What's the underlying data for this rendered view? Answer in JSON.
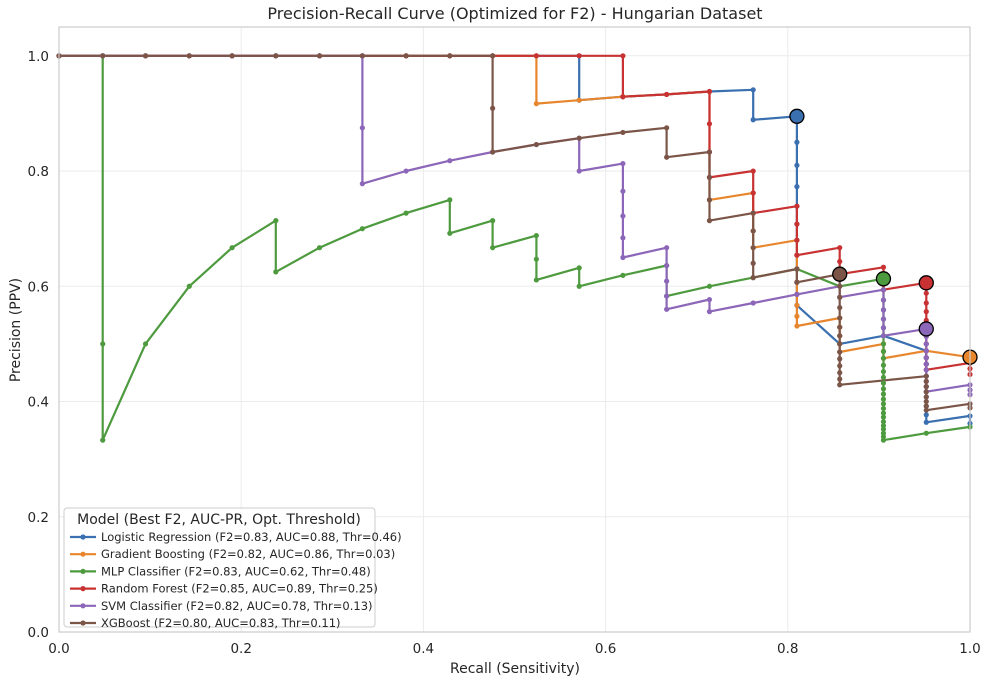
{
  "chart_data": {
    "type": "line",
    "title": "Precision-Recall Curve (Optimized for F2) - Hungarian Dataset",
    "xlabel": "Recall (Sensitivity)",
    "ylabel": "Precision (PPV)",
    "xlim": [
      0,
      1
    ],
    "ylim": [
      0,
      1.05
    ],
    "grid": true,
    "x_ticks": [
      "0.0",
      "0.2",
      "0.4",
      "0.6",
      "0.8",
      "1.0"
    ],
    "x_tick_values": [
      0,
      0.2,
      0.4,
      0.6,
      0.8,
      1.0
    ],
    "y_ticks": [
      "0.0",
      "0.2",
      "0.4",
      "0.6",
      "0.8",
      "1.0"
    ],
    "y_tick_values": [
      0,
      0.2,
      0.4,
      0.6,
      0.8,
      1.0
    ],
    "legend": {
      "title": "Model (Best F2, AUC-PR, Opt. Threshold)",
      "placement": "lower-left"
    },
    "series": [
      {
        "name": "Logistic Regression (F2=0.83, AUC=0.88, Thr=0.46)",
        "color": "#3a6fb0",
        "points": [
          [
            0,
            1
          ],
          [
            0.048,
            1
          ],
          [
            0.095,
            1
          ],
          [
            0.143,
            1
          ],
          [
            0.19,
            1
          ],
          [
            0.238,
            1
          ],
          [
            0.286,
            1
          ],
          [
            0.333,
            1
          ],
          [
            0.381,
            1
          ],
          [
            0.429,
            1
          ],
          [
            0.476,
            1
          ],
          [
            0.524,
            1
          ],
          [
            0.571,
            1
          ],
          [
            0.571,
            0.923
          ],
          [
            0.619,
            0.929
          ],
          [
            0.667,
            0.933
          ],
          [
            0.714,
            0.938
          ],
          [
            0.762,
            0.941
          ],
          [
            0.762,
            0.889
          ],
          [
            0.81,
            0.895
          ],
          [
            0.81,
            0.85
          ],
          [
            0.81,
            0.81
          ],
          [
            0.81,
            0.773
          ],
          [
            0.81,
            0.739
          ],
          [
            0.81,
            0.708
          ],
          [
            0.81,
            0.68
          ],
          [
            0.81,
            0.654
          ],
          [
            0.81,
            0.63
          ],
          [
            0.81,
            0.607
          ],
          [
            0.81,
            0.586
          ],
          [
            0.81,
            0.567
          ],
          [
            0.857,
            0.5
          ],
          [
            0.905,
            0.514
          ],
          [
            0.952,
            0.488
          ],
          [
            0.952,
            0.476
          ],
          [
            0.952,
            0.465
          ],
          [
            0.952,
            0.444
          ],
          [
            0.952,
            0.426
          ],
          [
            0.952,
            0.408
          ],
          [
            0.952,
            0.392
          ],
          [
            0.952,
            0.377
          ],
          [
            0.952,
            0.364
          ],
          [
            1.0,
            0.375
          ],
          [
            1.0,
            0.362
          ]
        ],
        "best": [
          0.81,
          0.895
        ]
      },
      {
        "name": "Gradient Boosting (F2=0.82, AUC=0.86, Thr=0.03)",
        "color": "#e8862e",
        "points": [
          [
            0,
            1
          ],
          [
            0.048,
            1
          ],
          [
            0.095,
            1
          ],
          [
            0.143,
            1
          ],
          [
            0.19,
            1
          ],
          [
            0.238,
            1
          ],
          [
            0.286,
            1
          ],
          [
            0.333,
            1
          ],
          [
            0.381,
            1
          ],
          [
            0.429,
            1
          ],
          [
            0.476,
            1
          ],
          [
            0.524,
            1
          ],
          [
            0.524,
            0.917
          ],
          [
            0.571,
            0.923
          ],
          [
            0.619,
            0.929
          ],
          [
            0.619,
            0.929
          ],
          [
            0.667,
            0.933
          ],
          [
            0.714,
            0.938
          ],
          [
            0.714,
            0.75
          ],
          [
            0.762,
            0.762
          ],
          [
            0.762,
            0.727
          ],
          [
            0.762,
            0.696
          ],
          [
            0.762,
            0.667
          ],
          [
            0.81,
            0.68
          ],
          [
            0.81,
            0.654
          ],
          [
            0.81,
            0.63
          ],
          [
            0.81,
            0.607
          ],
          [
            0.81,
            0.586
          ],
          [
            0.81,
            0.567
          ],
          [
            0.81,
            0.548
          ],
          [
            0.81,
            0.531
          ],
          [
            0.857,
            0.545
          ],
          [
            0.857,
            0.529
          ],
          [
            0.857,
            0.514
          ],
          [
            0.857,
            0.5
          ],
          [
            0.857,
            0.486
          ],
          [
            0.905,
            0.5
          ],
          [
            0.905,
            0.487
          ],
          [
            0.905,
            0.475
          ],
          [
            0.952,
            0.488
          ],
          [
            1.0,
            0.477
          ]
        ],
        "best": [
          1.0,
          0.477
        ]
      },
      {
        "name": "MLP Classifier (F2=0.83, AUC=0.62, Thr=0.48)",
        "color": "#4e9a3f",
        "points": [
          [
            0,
            1
          ],
          [
            0.048,
            1
          ],
          [
            0.048,
            0.5
          ],
          [
            0.048,
            0.333
          ],
          [
            0.095,
            0.5
          ],
          [
            0.143,
            0.6
          ],
          [
            0.19,
            0.667
          ],
          [
            0.238,
            0.714
          ],
          [
            0.238,
            0.625
          ],
          [
            0.286,
            0.667
          ],
          [
            0.333,
            0.7
          ],
          [
            0.381,
            0.727
          ],
          [
            0.429,
            0.75
          ],
          [
            0.429,
            0.692
          ],
          [
            0.476,
            0.714
          ],
          [
            0.476,
            0.667
          ],
          [
            0.524,
            0.688
          ],
          [
            0.524,
            0.647
          ],
          [
            0.524,
            0.611
          ],
          [
            0.571,
            0.632
          ],
          [
            0.571,
            0.6
          ],
          [
            0.619,
            0.619
          ],
          [
            0.667,
            0.636
          ],
          [
            0.667,
            0.583
          ],
          [
            0.714,
            0.6
          ],
          [
            0.762,
            0.615
          ],
          [
            0.81,
            0.63
          ],
          [
            0.857,
            0.6
          ],
          [
            0.905,
            0.613
          ],
          [
            0.905,
            0.594
          ],
          [
            0.905,
            0.576
          ],
          [
            0.905,
            0.559
          ],
          [
            0.905,
            0.543
          ],
          [
            0.905,
            0.528
          ],
          [
            0.905,
            0.514
          ],
          [
            0.905,
            0.5
          ],
          [
            0.905,
            0.487
          ],
          [
            0.905,
            0.475
          ],
          [
            0.905,
            0.463
          ],
          [
            0.905,
            0.452
          ],
          [
            0.905,
            0.442
          ],
          [
            0.905,
            0.432
          ],
          [
            0.905,
            0.422
          ],
          [
            0.905,
            0.413
          ],
          [
            0.905,
            0.404
          ],
          [
            0.905,
            0.396
          ],
          [
            0.905,
            0.388
          ],
          [
            0.905,
            0.38
          ],
          [
            0.905,
            0.373
          ],
          [
            0.905,
            0.365
          ],
          [
            0.905,
            0.358
          ],
          [
            0.905,
            0.352
          ],
          [
            0.905,
            0.345
          ],
          [
            0.905,
            0.339
          ],
          [
            0.905,
            0.333
          ],
          [
            0.952,
            0.345
          ],
          [
            1.0,
            0.356
          ]
        ],
        "best": [
          0.905,
          0.613
        ]
      },
      {
        "name": "Random Forest (F2=0.85, AUC=0.89, Thr=0.25)",
        "color": "#c83232",
        "points": [
          [
            0,
            1
          ],
          [
            0.048,
            1
          ],
          [
            0.095,
            1
          ],
          [
            0.143,
            1
          ],
          [
            0.19,
            1
          ],
          [
            0.238,
            1
          ],
          [
            0.286,
            1
          ],
          [
            0.333,
            1
          ],
          [
            0.381,
            1
          ],
          [
            0.429,
            1
          ],
          [
            0.476,
            1
          ],
          [
            0.524,
            1
          ],
          [
            0.571,
            1
          ],
          [
            0.619,
            1
          ],
          [
            0.619,
            0.929
          ],
          [
            0.667,
            0.933
          ],
          [
            0.714,
            0.938
          ],
          [
            0.714,
            0.882
          ],
          [
            0.714,
            0.833
          ],
          [
            0.714,
            0.789
          ],
          [
            0.762,
            0.8
          ],
          [
            0.762,
            0.762
          ],
          [
            0.762,
            0.727
          ],
          [
            0.81,
            0.739
          ],
          [
            0.81,
            0.708
          ],
          [
            0.81,
            0.68
          ],
          [
            0.81,
            0.654
          ],
          [
            0.857,
            0.667
          ],
          [
            0.857,
            0.643
          ],
          [
            0.857,
            0.621
          ],
          [
            0.905,
            0.633
          ],
          [
            0.905,
            0.613
          ],
          [
            0.905,
            0.594
          ],
          [
            0.952,
            0.606
          ],
          [
            0.952,
            0.588
          ],
          [
            0.952,
            0.571
          ],
          [
            0.952,
            0.556
          ],
          [
            0.952,
            0.541
          ],
          [
            0.952,
            0.526
          ],
          [
            0.952,
            0.513
          ],
          [
            0.952,
            0.5
          ],
          [
            0.952,
            0.488
          ],
          [
            0.952,
            0.476
          ],
          [
            0.952,
            0.465
          ],
          [
            0.952,
            0.455
          ],
          [
            1.0,
            0.467
          ],
          [
            1.0,
            0.457
          ],
          [
            1.0,
            0.447
          ]
        ],
        "best": [
          0.952,
          0.606
        ]
      },
      {
        "name": "SVM Classifier (F2=0.82, AUC=0.78, Thr=0.13)",
        "color": "#8c66b8",
        "points": [
          [
            0,
            1
          ],
          [
            0.048,
            1
          ],
          [
            0.095,
            1
          ],
          [
            0.143,
            1
          ],
          [
            0.19,
            1
          ],
          [
            0.238,
            1
          ],
          [
            0.286,
            1
          ],
          [
            0.333,
            1
          ],
          [
            0.333,
            0.875
          ],
          [
            0.333,
            0.778
          ],
          [
            0.381,
            0.8
          ],
          [
            0.429,
            0.818
          ],
          [
            0.476,
            0.833
          ],
          [
            0.524,
            0.846
          ],
          [
            0.571,
            0.857
          ],
          [
            0.571,
            0.8
          ],
          [
            0.619,
            0.813
          ],
          [
            0.619,
            0.765
          ],
          [
            0.619,
            0.722
          ],
          [
            0.619,
            0.684
          ],
          [
            0.619,
            0.65
          ],
          [
            0.667,
            0.667
          ],
          [
            0.667,
            0.636
          ],
          [
            0.667,
            0.609
          ],
          [
            0.667,
            0.583
          ],
          [
            0.667,
            0.56
          ],
          [
            0.714,
            0.577
          ],
          [
            0.714,
            0.556
          ],
          [
            0.762,
            0.571
          ],
          [
            0.81,
            0.586
          ],
          [
            0.857,
            0.6
          ],
          [
            0.857,
            0.581
          ],
          [
            0.905,
            0.594
          ],
          [
            0.905,
            0.576
          ],
          [
            0.905,
            0.559
          ],
          [
            0.905,
            0.543
          ],
          [
            0.905,
            0.528
          ],
          [
            0.905,
            0.514
          ],
          [
            0.952,
            0.526
          ],
          [
            0.952,
            0.513
          ],
          [
            0.952,
            0.5
          ],
          [
            0.952,
            0.488
          ],
          [
            0.952,
            0.476
          ],
          [
            0.952,
            0.465
          ],
          [
            0.952,
            0.455
          ],
          [
            0.952,
            0.444
          ],
          [
            0.952,
            0.435
          ],
          [
            0.952,
            0.426
          ],
          [
            0.952,
            0.417
          ],
          [
            1.0,
            0.429
          ],
          [
            1.0,
            0.42
          ],
          [
            1.0,
            0.412
          ]
        ],
        "best": [
          0.952,
          0.526
        ]
      },
      {
        "name": "XGBoost (F2=0.80, AUC=0.83, Thr=0.11)",
        "color": "#7b5548",
        "points": [
          [
            0,
            1
          ],
          [
            0.048,
            1
          ],
          [
            0.095,
            1
          ],
          [
            0.143,
            1
          ],
          [
            0.19,
            1
          ],
          [
            0.238,
            1
          ],
          [
            0.286,
            1
          ],
          [
            0.333,
            1
          ],
          [
            0.381,
            1
          ],
          [
            0.429,
            1
          ],
          [
            0.476,
            1
          ],
          [
            0.476,
            0.909
          ],
          [
            0.476,
            0.833
          ],
          [
            0.524,
            0.846
          ],
          [
            0.571,
            0.857
          ],
          [
            0.619,
            0.867
          ],
          [
            0.667,
            0.875
          ],
          [
            0.667,
            0.824
          ],
          [
            0.714,
            0.833
          ],
          [
            0.714,
            0.789
          ],
          [
            0.714,
            0.75
          ],
          [
            0.714,
            0.714
          ],
          [
            0.762,
            0.727
          ],
          [
            0.762,
            0.696
          ],
          [
            0.762,
            0.667
          ],
          [
            0.762,
            0.64
          ],
          [
            0.762,
            0.615
          ],
          [
            0.81,
            0.63
          ],
          [
            0.81,
            0.607
          ],
          [
            0.857,
            0.621
          ],
          [
            0.857,
            0.6
          ],
          [
            0.857,
            0.581
          ],
          [
            0.857,
            0.563
          ],
          [
            0.857,
            0.545
          ],
          [
            0.857,
            0.529
          ],
          [
            0.857,
            0.514
          ],
          [
            0.857,
            0.5
          ],
          [
            0.857,
            0.486
          ],
          [
            0.857,
            0.474
          ],
          [
            0.857,
            0.462
          ],
          [
            0.857,
            0.45
          ],
          [
            0.857,
            0.439
          ],
          [
            0.857,
            0.429
          ],
          [
            0.952,
            0.444
          ],
          [
            0.952,
            0.435
          ],
          [
            0.952,
            0.426
          ],
          [
            0.952,
            0.417
          ],
          [
            0.952,
            0.408
          ],
          [
            0.952,
            0.4
          ],
          [
            0.952,
            0.392
          ],
          [
            0.952,
            0.385
          ],
          [
            1.0,
            0.396
          ],
          [
            1.0,
            0.389
          ]
        ],
        "best": [
          0.857,
          0.621
        ]
      }
    ]
  }
}
